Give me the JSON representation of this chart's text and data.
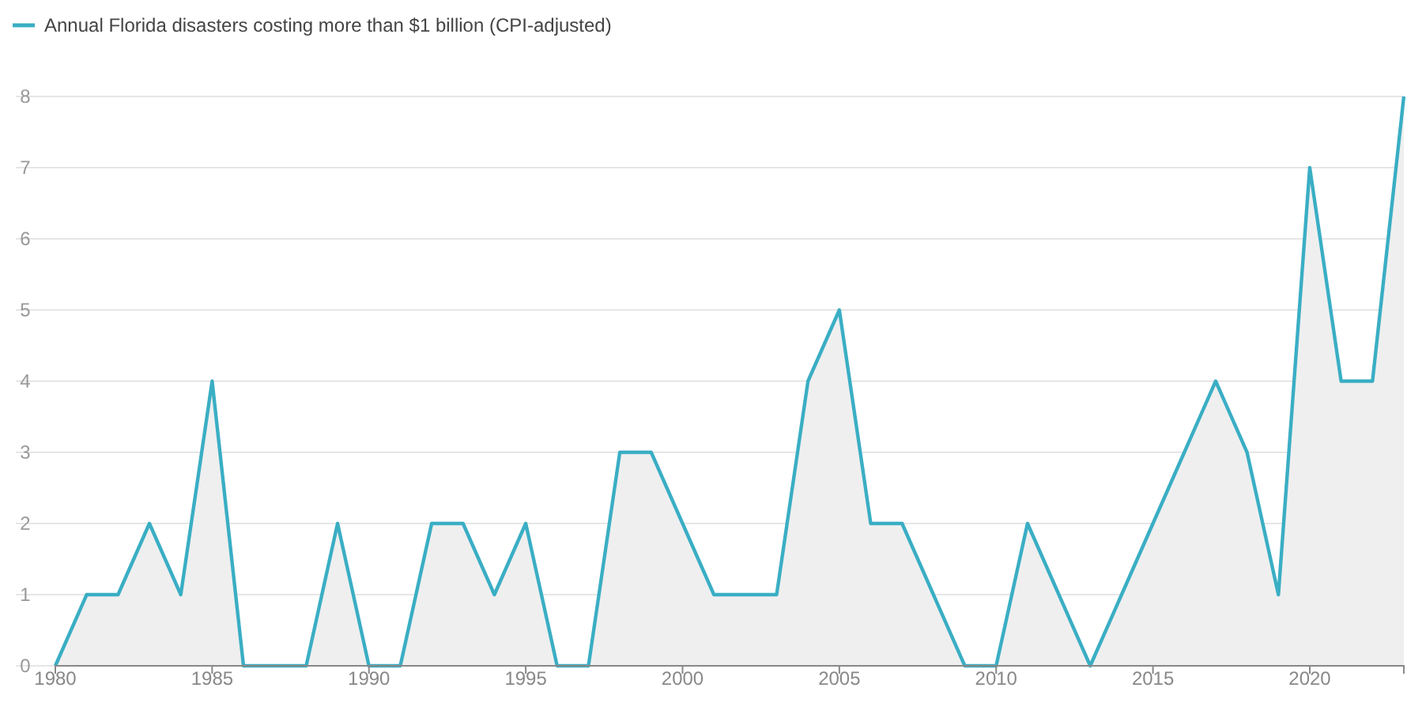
{
  "chart_data": {
    "type": "area",
    "x": [
      1980,
      1981,
      1982,
      1983,
      1984,
      1985,
      1986,
      1987,
      1988,
      1989,
      1990,
      1991,
      1992,
      1993,
      1994,
      1995,
      1996,
      1997,
      1998,
      1999,
      2000,
      2001,
      2002,
      2003,
      2004,
      2005,
      2006,
      2007,
      2008,
      2009,
      2010,
      2011,
      2012,
      2013,
      2014,
      2015,
      2016,
      2017,
      2018,
      2019,
      2020,
      2021,
      2022,
      2023
    ],
    "series": [
      {
        "name": "Annual Florida disasters costing more than $1 billion (CPI-adjusted)",
        "color": "#3aaec4",
        "values": [
          0,
          1,
          1,
          2,
          1,
          4,
          0,
          0,
          0,
          2,
          0,
          0,
          2,
          2,
          1,
          2,
          0,
          0,
          3,
          3,
          2,
          1,
          1,
          1,
          4,
          5,
          2,
          2,
          1,
          0,
          0,
          2,
          1,
          0,
          1,
          2,
          3,
          4,
          3,
          1,
          7,
          4,
          4,
          8
        ]
      }
    ],
    "xlim": [
      1980,
      2023
    ],
    "xticks": [
      1980,
      1985,
      1990,
      1995,
      2000,
      2005,
      2010,
      2015,
      2020
    ],
    "ylim": [
      0,
      8
    ],
    "yticks": [
      0,
      1,
      2,
      3,
      4,
      5,
      6,
      7,
      8
    ],
    "grid": "y",
    "legend": "top left"
  }
}
